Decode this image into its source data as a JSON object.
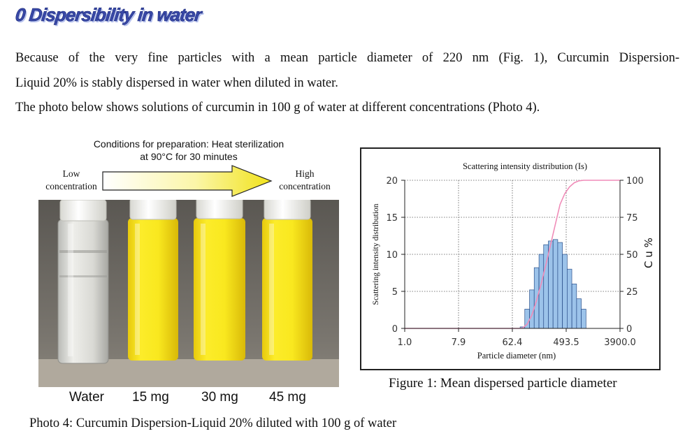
{
  "section": {
    "heading": "0 Dispersibility in water",
    "paragraph_lines": [
      "Because of the very fine particles with a mean particle diameter of 220 nm (Fig. 1), Curcumin Dispersion-",
      "Liquid 20% is stably dispersed in water when diluted in water.",
      "The photo below shows solutions of curcumin in 100 g of water at different concentrations (Photo 4)."
    ]
  },
  "photo": {
    "conditions_line1": "Conditions for preparation: Heat sterilization",
    "conditions_line2": "at 90°C for 30 minutes",
    "low_line1": "Low",
    "low_line2": "concentration",
    "high_line1": "High",
    "high_line2": "concentration",
    "jar_labels": [
      "Water",
      "15 mg",
      "30 mg",
      "45 mg"
    ],
    "caption": "Photo 4: Curcumin Dispersion-Liquid 20% diluted with 100 g of water",
    "colors": {
      "liquid": "#f7e619",
      "cap": "#f2f2ee",
      "background": "#6c6862",
      "shelf": "#b8b0a4"
    }
  },
  "chart_data": {
    "type": "bar",
    "title": "Scattering intensity distribution (Is)",
    "xlabel": "Particle diameter (nm)",
    "ylabel": "Scattering intensity distribution",
    "y2label": "C u %",
    "x_scale": "log",
    "xlim": [
      1.0,
      3900.0
    ],
    "x_ticks": [
      "1.0",
      "7.9",
      "62.4",
      "493.5",
      "3900.0"
    ],
    "x_tick_values": [
      1.0,
      7.9,
      62.4,
      493.5,
      3900.0
    ],
    "ylim": [
      0,
      20
    ],
    "y_ticks": [
      "0",
      "5",
      "10",
      "15",
      "20"
    ],
    "y2lim": [
      0,
      100
    ],
    "y2_ticks": [
      "0",
      "25",
      "50",
      "75",
      "100"
    ],
    "grid": true,
    "bar_color": "#9cc3ea",
    "bar_edge_color": "#2a4f8a",
    "curve_color": "#f08cb8",
    "bar_x_nm": [
      92,
      110,
      132,
      158,
      190,
      227,
      272,
      326,
      390,
      468,
      560,
      672,
      805,
      965,
      1156
    ],
    "bar_values": [
      0.2,
      2.6,
      5.2,
      8.2,
      10.0,
      11.3,
      11.8,
      12.0,
      11.6,
      10.0,
      8.0,
      6.0,
      4.0,
      2.6,
      0.0
    ],
    "cumulative_x_nm": [
      1.0,
      62.4,
      80,
      92,
      110,
      132,
      158,
      190,
      227,
      272,
      326,
      390,
      468,
      560,
      672,
      805,
      965,
      1156,
      3900.0
    ],
    "cumulative_pct": [
      0,
      0,
      0,
      0.2,
      2.8,
      9.0,
      18.8,
      30.4,
      43.3,
      56.8,
      70.5,
      83.7,
      91.0,
      95.5,
      98.3,
      99.6,
      100,
      100,
      100
    ]
  },
  "figure_caption": "Figure 1: Mean dispersed particle diameter"
}
